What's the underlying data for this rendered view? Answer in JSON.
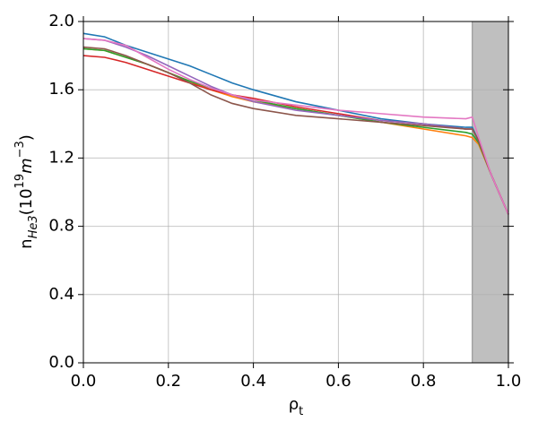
{
  "chart_data": {
    "type": "line",
    "xlabel": [
      "ρ",
      "t"
    ],
    "ylabel": [
      "n",
      "He3",
      "(10",
      "19",
      "m",
      "−3",
      ")"
    ],
    "x": [
      0,
      0.05,
      0.1,
      0.15,
      0.2,
      0.25,
      0.3,
      0.35,
      0.4,
      0.5,
      0.6,
      0.7,
      0.8,
      0.9,
      0.915,
      0.93,
      0.96,
      1.0
    ],
    "series": [
      {
        "color": "#1f77b4",
        "values": [
          1.93,
          1.91,
          1.86,
          1.82,
          1.78,
          1.74,
          1.69,
          1.64,
          1.6,
          1.53,
          1.48,
          1.43,
          1.4,
          1.38,
          1.38,
          1.3,
          1.1,
          0.87
        ]
      },
      {
        "color": "#ff7f0e",
        "values": [
          1.84,
          1.83,
          1.79,
          1.75,
          1.7,
          1.65,
          1.6,
          1.56,
          1.53,
          1.49,
          1.45,
          1.41,
          1.37,
          1.33,
          1.32,
          1.28,
          1.1,
          0.87
        ]
      },
      {
        "color": "#2ca02c",
        "values": [
          1.84,
          1.83,
          1.79,
          1.75,
          1.7,
          1.65,
          1.61,
          1.57,
          1.54,
          1.49,
          1.45,
          1.41,
          1.38,
          1.35,
          1.34,
          1.29,
          1.1,
          0.87
        ]
      },
      {
        "color": "#d62728",
        "values": [
          1.8,
          1.79,
          1.76,
          1.72,
          1.68,
          1.64,
          1.6,
          1.57,
          1.55,
          1.5,
          1.46,
          1.42,
          1.4,
          1.37,
          1.37,
          1.3,
          1.1,
          0.87
        ]
      },
      {
        "color": "#9467bd",
        "values": [
          1.9,
          1.89,
          1.85,
          1.8,
          1.74,
          1.68,
          1.62,
          1.57,
          1.53,
          1.48,
          1.45,
          1.42,
          1.4,
          1.37,
          1.37,
          1.3,
          1.1,
          0.87
        ]
      },
      {
        "color": "#8c564b",
        "values": [
          1.85,
          1.84,
          1.8,
          1.75,
          1.7,
          1.64,
          1.57,
          1.52,
          1.49,
          1.45,
          1.43,
          1.41,
          1.39,
          1.37,
          1.37,
          1.3,
          1.1,
          0.87
        ]
      },
      {
        "color": "#e377c2",
        "values": [
          1.9,
          1.89,
          1.86,
          1.79,
          1.72,
          1.66,
          1.61,
          1.57,
          1.54,
          1.51,
          1.48,
          1.46,
          1.44,
          1.43,
          1.44,
          1.32,
          1.1,
          0.87
        ]
      }
    ],
    "shaded_region": [
      0.915,
      1.0
    ],
    "shaded_color": "#bfbfbf",
    "xlim": [
      0,
      1
    ],
    "ylim": [
      0,
      2
    ],
    "xticks": [
      {
        "value": 0,
        "label": "0.0"
      },
      0.2,
      0.4,
      0.6,
      0.8,
      {
        "value": 1,
        "label": "1.0"
      }
    ],
    "yticks": [
      {
        "value": 0,
        "label": "0.0"
      },
      0.4,
      0.8,
      1.2,
      1.6,
      {
        "value": 2,
        "label": "2.0"
      }
    ],
    "grid": true
  }
}
